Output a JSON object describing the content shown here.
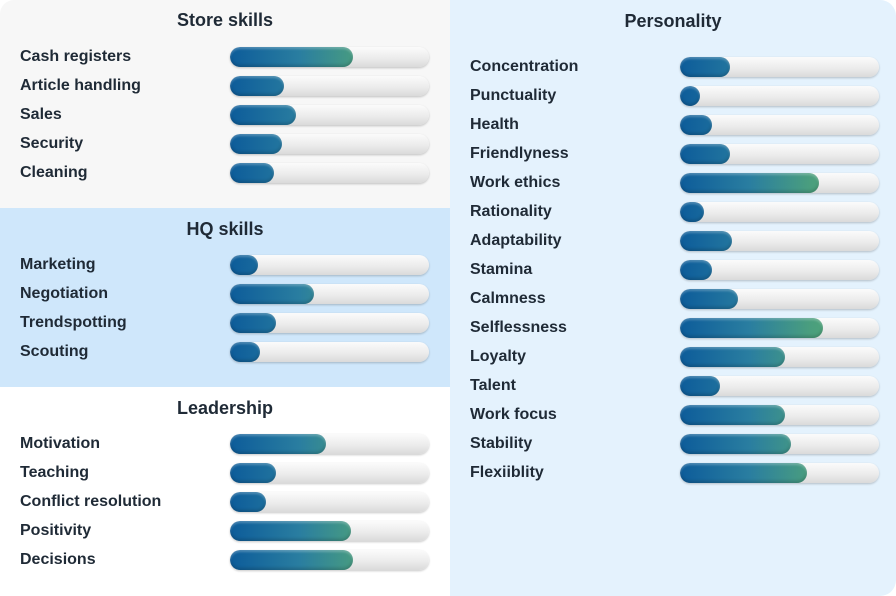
{
  "store": {
    "title": "Store skills",
    "items": [
      {
        "label": "Cash registers",
        "value": 0.62
      },
      {
        "label": "Article handling",
        "value": 0.27
      },
      {
        "label": "Sales",
        "value": 0.33
      },
      {
        "label": "Security",
        "value": 0.26
      },
      {
        "label": "Cleaning",
        "value": 0.22
      }
    ]
  },
  "hq": {
    "title": "HQ skills",
    "items": [
      {
        "label": "Marketing",
        "value": 0.14
      },
      {
        "label": "Negotiation",
        "value": 0.42
      },
      {
        "label": "Trendspotting",
        "value": 0.23
      },
      {
        "label": "Scouting",
        "value": 0.15
      }
    ]
  },
  "leadership": {
    "title": "Leadership",
    "items": [
      {
        "label": "Motivation",
        "value": 0.48
      },
      {
        "label": "Teaching",
        "value": 0.23
      },
      {
        "label": "Conflict resolution",
        "value": 0.18
      },
      {
        "label": "Positivity",
        "value": 0.61
      },
      {
        "label": "Decisions",
        "value": 0.62
      }
    ]
  },
  "personality": {
    "title": "Personality",
    "items": [
      {
        "label": "Concentration",
        "value": 0.25
      },
      {
        "label": "Punctuality",
        "value": 0.1
      },
      {
        "label": "Health",
        "value": 0.16
      },
      {
        "label": "Friendlyness",
        "value": 0.25
      },
      {
        "label": "Work ethics",
        "value": 0.7
      },
      {
        "label": "Rationality",
        "value": 0.12
      },
      {
        "label": "Adaptability",
        "value": 0.26
      },
      {
        "label": "Stamina",
        "value": 0.16
      },
      {
        "label": "Calmness",
        "value": 0.29
      },
      {
        "label": "Selflessness",
        "value": 0.72
      },
      {
        "label": "Loyalty",
        "value": 0.53
      },
      {
        "label": "Talent",
        "value": 0.2
      },
      {
        "label": "Work focus",
        "value": 0.53
      },
      {
        "label": "Stability",
        "value": 0.56
      },
      {
        "label": "Flexiiblity",
        "value": 0.64
      }
    ]
  }
}
